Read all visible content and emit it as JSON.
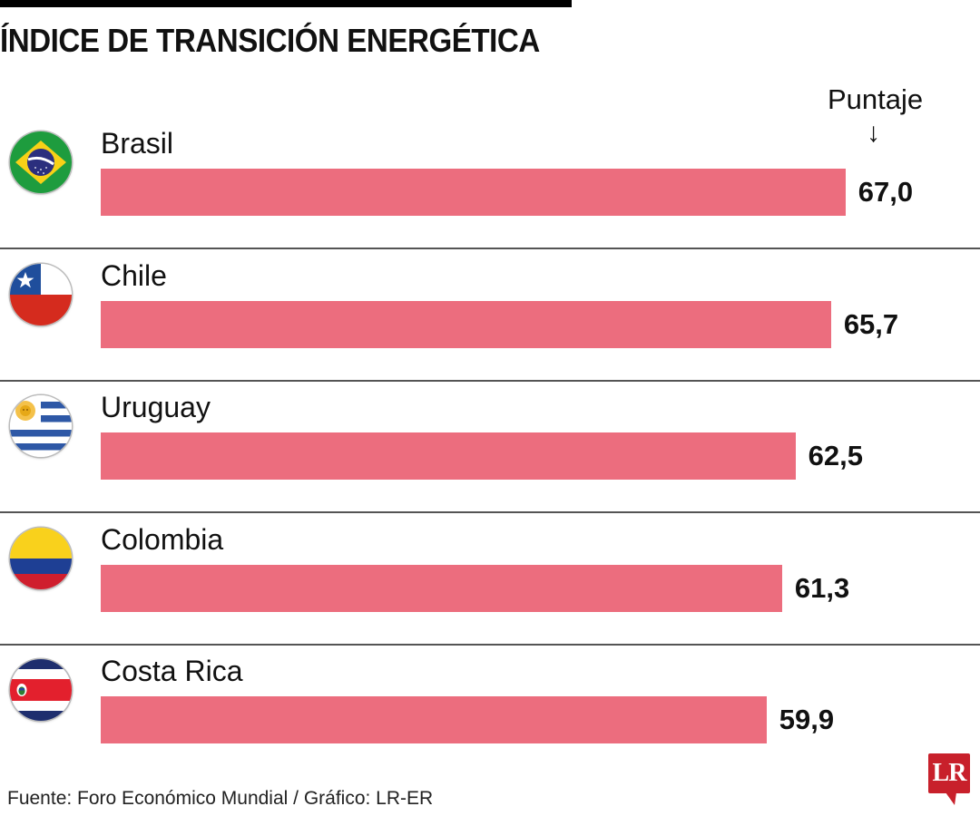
{
  "header": {
    "title": "ÍNDICE DE TRANSICIÓN ENERGÉTICA",
    "value_label": "Puntaje",
    "arrow_glyph": "↓"
  },
  "footer": {
    "source": "Fuente: Foro Económico Mundial / Gráfico: LR-ER",
    "logo_text": "LR"
  },
  "colors": {
    "bar": "#ec6d7e",
    "logo": "#c8202b"
  },
  "chart_data": {
    "type": "bar",
    "orientation": "horizontal",
    "title": "ÍNDICE DE TRANSICIÓN ENERGÉTICA",
    "xlabel": "Puntaje",
    "ylabel": "",
    "categories": [
      "Brasil",
      "Chile",
      "Uruguay",
      "Colombia",
      "Costa Rica"
    ],
    "values": [
      67.0,
      65.7,
      62.5,
      61.3,
      59.9
    ],
    "value_labels": [
      "67,0",
      "65,7",
      "62,5",
      "61,3",
      "59,9"
    ],
    "flags": [
      "brazil-flag",
      "chile-flag",
      "uruguay-flag",
      "colombia-flag",
      "costa-rica-flag"
    ],
    "xlim": [
      0,
      100
    ],
    "grid": false,
    "legend": "none",
    "source": "Fuente: Foro Económico Mundial / Gráfico: LR-ER"
  }
}
